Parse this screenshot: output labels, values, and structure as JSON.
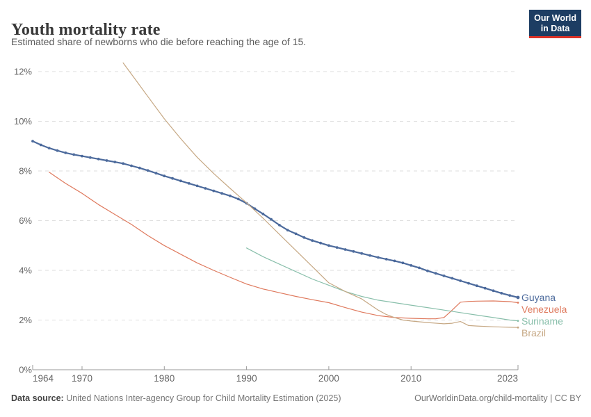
{
  "header": {
    "title": "Youth mortality rate",
    "subtitle": "Estimated share of newborns who die before reaching the age of 15.",
    "logo": {
      "line1": "Our World",
      "line2": "in Data",
      "bg": "#1d3d63",
      "accent": "#dc3227"
    }
  },
  "footer": {
    "source_label": "Data source:",
    "source_text": " United Nations Inter-agency Group for Child Mortality Estimation (2025)",
    "link_text": "OurWorldinData.org/child-mortality | CC BY"
  },
  "chart_data": {
    "type": "line",
    "title": "Youth mortality rate",
    "xlabel": "",
    "ylabel": "",
    "x_range": [
      1964,
      2023
    ],
    "ylim": [
      0,
      12
    ],
    "grid": "horizontal-dashed",
    "legend_position": "right-of-line-ends",
    "y_ticks": [
      {
        "value": 0,
        "label": "0%"
      },
      {
        "value": 2,
        "label": "2%"
      },
      {
        "value": 4,
        "label": "4%"
      },
      {
        "value": 6,
        "label": "6%"
      },
      {
        "value": 8,
        "label": "8%"
      },
      {
        "value": 10,
        "label": "10%"
      },
      {
        "value": 12,
        "label": "12%"
      }
    ],
    "x_ticks": [
      {
        "year": 1964,
        "label": "1964",
        "anchor": "start",
        "cap": true
      },
      {
        "year": 1970,
        "label": "1970",
        "anchor": "middle",
        "cap": false
      },
      {
        "year": 1980,
        "label": "1980",
        "anchor": "middle",
        "cap": false
      },
      {
        "year": 1990,
        "label": "1990",
        "anchor": "middle",
        "cap": false
      },
      {
        "year": 2000,
        "label": "2000",
        "anchor": "middle",
        "cap": false
      },
      {
        "year": 2010,
        "label": "2010",
        "anchor": "middle",
        "cap": false
      },
      {
        "year": 2023,
        "label": "2023",
        "anchor": "end",
        "cap": true
      }
    ],
    "series": [
      {
        "name": "Guyana",
        "color": "#4C6A9C",
        "markers": true,
        "line_width": 2.2,
        "x": [
          1964,
          1965,
          1966,
          1967,
          1968,
          1969,
          1970,
          1971,
          1972,
          1973,
          1974,
          1975,
          1976,
          1977,
          1978,
          1979,
          1980,
          1981,
          1982,
          1983,
          1984,
          1985,
          1986,
          1987,
          1988,
          1989,
          1990,
          1991,
          1992,
          1993,
          1994,
          1995,
          1996,
          1997,
          1998,
          1999,
          2000,
          2001,
          2002,
          2003,
          2004,
          2005,
          2006,
          2007,
          2008,
          2009,
          2010,
          2011,
          2012,
          2013,
          2014,
          2015,
          2016,
          2017,
          2018,
          2019,
          2020,
          2021,
          2022,
          2023
        ],
        "values": [
          9.2,
          9.05,
          8.92,
          8.82,
          8.73,
          8.66,
          8.6,
          8.54,
          8.48,
          8.42,
          8.36,
          8.3,
          8.21,
          8.12,
          8.02,
          7.91,
          7.8,
          7.7,
          7.6,
          7.5,
          7.4,
          7.3,
          7.2,
          7.1,
          7.0,
          6.87,
          6.7,
          6.48,
          6.27,
          6.05,
          5.82,
          5.62,
          5.47,
          5.32,
          5.2,
          5.1,
          5.0,
          4.92,
          4.84,
          4.76,
          4.68,
          4.6,
          4.52,
          4.45,
          4.38,
          4.3,
          4.2,
          4.1,
          3.98,
          3.88,
          3.78,
          3.68,
          3.58,
          3.48,
          3.38,
          3.28,
          3.18,
          3.08,
          2.99,
          2.91
        ]
      },
      {
        "name": "Venezuela",
        "color": "#DF7A5E",
        "markers": false,
        "line_width": 1.2,
        "x": [
          1966,
          1968,
          1970,
          1972,
          1974,
          1976,
          1978,
          1980,
          1982,
          1984,
          1986,
          1988,
          1990,
          1992,
          1994,
          1996,
          1998,
          2000,
          2002,
          2004,
          2006,
          2008,
          2010,
          2012,
          2013,
          2014,
          2015,
          2016,
          2017,
          2018,
          2020,
          2022,
          2023
        ],
        "values": [
          7.95,
          7.5,
          7.1,
          6.65,
          6.25,
          5.85,
          5.4,
          5.0,
          4.65,
          4.3,
          4.0,
          3.72,
          3.45,
          3.25,
          3.1,
          2.95,
          2.82,
          2.7,
          2.5,
          2.32,
          2.18,
          2.1,
          2.07,
          2.05,
          2.05,
          2.1,
          2.4,
          2.72,
          2.75,
          2.76,
          2.77,
          2.74,
          2.7
        ]
      },
      {
        "name": "Suriname",
        "color": "#89BFAB",
        "markers": false,
        "line_width": 1.2,
        "x": [
          1990,
          1992,
          1994,
          1996,
          1998,
          2000,
          2002,
          2004,
          2006,
          2008,
          2010,
          2012,
          2014,
          2016,
          2018,
          2020,
          2022,
          2023
        ],
        "values": [
          4.9,
          4.55,
          4.25,
          3.95,
          3.65,
          3.4,
          3.15,
          2.95,
          2.8,
          2.7,
          2.6,
          2.5,
          2.4,
          2.3,
          2.2,
          2.1,
          2.0,
          1.97
        ]
      },
      {
        "name": "Brazil",
        "color": "#C6A884",
        "markers": false,
        "line_width": 1.2,
        "x": [
          1975,
          1976,
          1978,
          1980,
          1982,
          1984,
          1986,
          1988,
          1990,
          1992,
          1994,
          1996,
          1998,
          2000,
          2002,
          2004,
          2006,
          2007,
          2008,
          2009,
          2010,
          2012,
          2014,
          2015,
          2016,
          2017,
          2018,
          2020,
          2022,
          2023
        ],
        "values": [
          12.35,
          11.9,
          11.0,
          10.1,
          9.3,
          8.55,
          7.9,
          7.3,
          6.72,
          6.1,
          5.45,
          4.8,
          4.15,
          3.5,
          3.15,
          2.85,
          2.4,
          2.22,
          2.1,
          2.0,
          1.96,
          1.9,
          1.85,
          1.87,
          1.94,
          1.78,
          1.76,
          1.73,
          1.71,
          1.7
        ]
      }
    ]
  }
}
